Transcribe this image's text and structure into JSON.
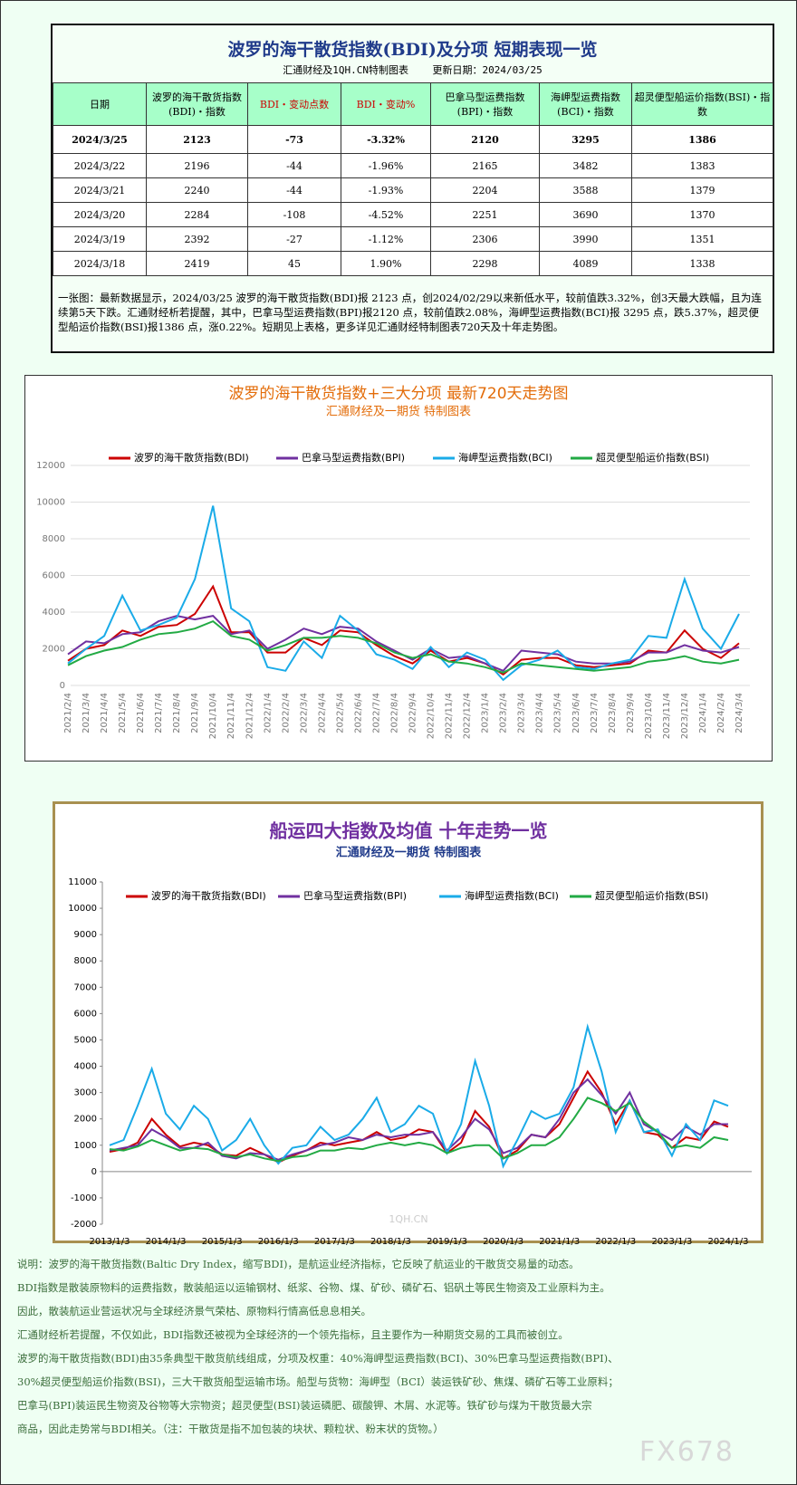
{
  "table": {
    "title": "波罗的海干散货指数(BDI)及分项  短期表现一览",
    "subtitle": "汇通财经及1QH.CN特制图表    更新日期：2024/03/25",
    "headers": [
      "日期",
      "波罗的海干散货指数(BDI)・指数",
      "BDI・变动点数",
      "BDI・变动%",
      "巴拿马型运费指数(BPI)・指数",
      "海岬型运费指数(BCI)・指数",
      "超灵便型船运价指数(BSI)・指数"
    ],
    "rows": [
      [
        "2024/3/25",
        "2123",
        "-73",
        "-3.32%",
        "2120",
        "3295",
        "1386"
      ],
      [
        "2024/3/22",
        "2196",
        "-44",
        "-1.96%",
        "2165",
        "3482",
        "1383"
      ],
      [
        "2024/3/21",
        "2240",
        "-44",
        "-1.93%",
        "2204",
        "3588",
        "1379"
      ],
      [
        "2024/3/20",
        "2284",
        "-108",
        "-4.52%",
        "2251",
        "3690",
        "1370"
      ],
      [
        "2024/3/19",
        "2392",
        "-27",
        "-1.12%",
        "2306",
        "3990",
        "1351"
      ],
      [
        "2024/3/18",
        "2419",
        "45",
        "1.90%",
        "2298",
        "4089",
        "1338"
      ]
    ],
    "summary": "一张图：最新数据显示，2024/03/25 波罗的海干散货指数(BDI)报 2123 点，创2024/02/29以来新低水平，较前值跌3.32%，创3天最大跌幅，且为连续第5天下跌。汇通财经析若提醒，其中，巴拿马型运费指数(BPI)报2120 点，较前值跌2.08%，海岬型运费指数(BCI)报 3295 点，跌5.37%，超灵便型船运价指数(BSI)报1386 点，涨0.22%。短期见上表格，更多详见汇通财经特制图表720天及十年走势图。"
  },
  "chart_data": [
    {
      "type": "line",
      "title": "波罗的海干散货指数+三大分项  最新720天走势图",
      "subtitle": "汇通财经及一期货  特制图表",
      "categories": [
        "2021/2/4",
        "2021/3/4",
        "2021/4/4",
        "2021/5/4",
        "2021/6/4",
        "2021/7/4",
        "2021/8/4",
        "2021/9/4",
        "2021/10/4",
        "2021/11/4",
        "2021/12/4",
        "2022/1/4",
        "2022/2/4",
        "2022/3/4",
        "2022/4/4",
        "2022/5/4",
        "2022/6/4",
        "2022/7/4",
        "2022/8/4",
        "2022/9/4",
        "2022/10/4",
        "2022/11/4",
        "2022/12/4",
        "2023/1/4",
        "2023/2/4",
        "2023/3/4",
        "2023/4/4",
        "2023/5/4",
        "2023/6/4",
        "2023/7/4",
        "2023/8/4",
        "2023/9/4",
        "2023/10/4",
        "2023/11/4",
        "2023/12/4",
        "2024/1/4",
        "2024/2/4",
        "2024/3/4"
      ],
      "series": [
        {
          "name": "波罗的海干散货指数(BDI)",
          "color": "#cc0000",
          "values": [
            1350,
            2000,
            2200,
            3000,
            2700,
            3200,
            3300,
            3900,
            5400,
            2900,
            2900,
            1800,
            1800,
            2600,
            2200,
            3000,
            2900,
            2200,
            1600,
            1200,
            1900,
            1300,
            1500,
            1200,
            600,
            1400,
            1500,
            1500,
            1100,
            1000,
            1100,
            1200,
            1900,
            1800,
            3000,
            2000,
            1500,
            2300
          ]
        },
        {
          "name": "巴拿马型运费指数(BPI)",
          "color": "#7030a0",
          "values": [
            1700,
            2400,
            2300,
            2800,
            2900,
            3500,
            3800,
            3600,
            3800,
            2800,
            3000,
            2000,
            2500,
            3100,
            2800,
            3200,
            3100,
            2400,
            1900,
            1400,
            2000,
            1500,
            1600,
            1200,
            800,
            1900,
            1800,
            1700,
            1300,
            1200,
            1200,
            1300,
            1800,
            1800,
            2200,
            1900,
            1800,
            2100
          ]
        },
        {
          "name": "海岬型运费指数(BCI)",
          "color": "#1aabe8",
          "values": [
            1200,
            2000,
            2700,
            4900,
            3000,
            3300,
            3700,
            5800,
            9800,
            4200,
            3500,
            1000,
            800,
            2400,
            1500,
            3800,
            3000,
            1700,
            1400,
            900,
            2100,
            1000,
            1800,
            1400,
            300,
            1100,
            1400,
            1900,
            1000,
            900,
            1200,
            1400,
            2700,
            2600,
            5800,
            3100,
            2000,
            3900
          ]
        },
        {
          "name": "超灵便型船运价指数(BSI)",
          "color": "#22aa44",
          "values": [
            1100,
            1600,
            1900,
            2100,
            2500,
            2800,
            2900,
            3100,
            3500,
            2700,
            2500,
            1900,
            2200,
            2600,
            2600,
            2700,
            2600,
            2300,
            1800,
            1500,
            1700,
            1300,
            1200,
            1000,
            700,
            1200,
            1100,
            1000,
            900,
            800,
            900,
            1000,
            1300,
            1400,
            1600,
            1300,
            1200,
            1400
          ]
        }
      ],
      "ylim": [
        0,
        12000
      ],
      "yticks": [
        0,
        2000,
        4000,
        6000,
        8000,
        10000,
        12000
      ],
      "grid": true
    },
    {
      "type": "line",
      "title": "船运四大指数及均值 十年走势一览",
      "subtitle": "汇通财经及一期货 特制图表",
      "categories": [
        "2013/1/3",
        null,
        null,
        null,
        "2014/1/3",
        null,
        null,
        null,
        "2015/1/3",
        null,
        null,
        null,
        "2016/1/3",
        null,
        null,
        null,
        "2017/1/3",
        null,
        null,
        null,
        "2018/1/3",
        null,
        null,
        null,
        "2019/1/3",
        null,
        null,
        null,
        "2020/1/3",
        null,
        null,
        null,
        "2021/1/3",
        null,
        null,
        null,
        "2022/1/3",
        null,
        null,
        null,
        "2023/1/3",
        null,
        null,
        null,
        "2024/1/3"
      ],
      "series": [
        {
          "name": "波罗的海干散货指数(BDI)",
          "color": "#cc0000",
          "values": [
            750,
            850,
            1100,
            2000,
            1400,
            950,
            1100,
            1000,
            650,
            600,
            900,
            650,
            350,
            600,
            800,
            1100,
            1000,
            1100,
            1200,
            1500,
            1200,
            1300,
            1600,
            1500,
            700,
            1100,
            2300,
            1700,
            500,
            800,
            1400,
            1300,
            1800,
            2800,
            3800,
            3000,
            1800,
            2700,
            1500,
            1400,
            900,
            1300,
            1200,
            1900,
            1700
          ]
        },
        {
          "name": "巴拿马型运费指数(BPI)",
          "color": "#7030a0",
          "values": [
            800,
            900,
            1000,
            1600,
            1300,
            900,
            900,
            1100,
            600,
            500,
            700,
            650,
            450,
            650,
            800,
            1000,
            1100,
            1300,
            1200,
            1400,
            1300,
            1400,
            1400,
            1500,
            800,
            1300,
            2000,
            1600,
            700,
            900,
            1400,
            1300,
            2000,
            3000,
            3500,
            2900,
            2200,
            3000,
            1800,
            1500,
            1200,
            1700,
            1400,
            1800,
            1800
          ]
        },
        {
          "name": "海岬型运费指数(BCI)",
          "color": "#1aabe8",
          "values": [
            1000,
            1200,
            2500,
            3900,
            2200,
            1600,
            2500,
            2000,
            800,
            1200,
            2000,
            1000,
            300,
            900,
            1000,
            1700,
            1200,
            1400,
            2000,
            2800,
            1500,
            1800,
            2500,
            2200,
            700,
            1800,
            4200,
            2500,
            200,
            1200,
            2300,
            2000,
            2200,
            3200,
            5500,
            3800,
            1500,
            2700,
            1500,
            1600,
            600,
            1800,
            1200,
            2700,
            2500
          ]
        },
        {
          "name": "超灵便型船运价指数(BSI)",
          "color": "#22aa44",
          "values": [
            850,
            800,
            950,
            1200,
            1000,
            800,
            900,
            850,
            650,
            550,
            650,
            500,
            400,
            550,
            600,
            800,
            800,
            900,
            850,
            1000,
            1100,
            1000,
            1100,
            1000,
            700,
            900,
            1000,
            1000,
            500,
            700,
            1000,
            1000,
            1300,
            2000,
            2800,
            2600,
            2300,
            2600,
            1900,
            1500,
            900,
            1000,
            900,
            1300,
            1200
          ]
        }
      ],
      "ylim": [
        -2000,
        11000
      ],
      "yticks": [
        -2000,
        -1000,
        0,
        1000,
        2000,
        3000,
        4000,
        5000,
        6000,
        7000,
        8000,
        9000,
        10000,
        11000
      ],
      "grid": false,
      "watermark": "1QH.CN"
    }
  ],
  "notes": [
    "说明：波罗的海干散货指数(Baltic Dry Index，缩写BDI)，是航运业经济指标，它反映了航运业的干散货交易量的动态。",
    "BDI指数是散装原物料的运费指数，散装船运以运输钢材、纸浆、谷物、煤、矿砂、磷矿石、铝矾土等民生物资及工业原料为主。",
    "因此，散装航运业营运状况与全球经济景气荣枯、原物料行情高低息息相关。",
    "汇通财经析若提醒，不仅如此，BDI指数还被视为全球经济的一个领先指标，且主要作为一种期货交易的工具而被创立。",
    "波罗的海干散货指数(BDI)由35条典型干散货航线组成，分项及权重：40%海岬型运费指数(BCI)、30%巴拿马型运费指数(BPI)、",
    "30%超灵便型船运价指数(BSI)，三大干散货船型运输市场。船型与货物：海岬型（BCI）装运铁矿砂、焦煤、磷矿石等工业原料；",
    "巴拿马(BPI)装运民生物资及谷物等大宗物资；超灵便型(BSI)装运磷肥、碳酸钾、木屑、水泥等。铁矿砂与煤为干散货最大宗",
    "商品，因此走势常与BDI相关。（注：干散货是指不加包装的块状、颗粒状、粉末状的货物。）"
  ],
  "watermark": "FX678"
}
